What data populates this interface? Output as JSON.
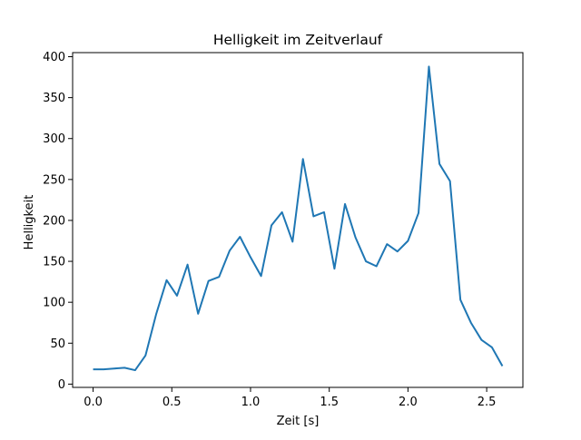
{
  "chart_data": {
    "type": "line",
    "title": "Helligkeit im Zeitverlauf",
    "xlabel": "Zeit [s]",
    "ylabel": "Helligkeit",
    "xlim": [
      -0.13,
      2.73
    ],
    "ylim": [
      -4,
      405
    ],
    "xticks": [
      0.0,
      0.5,
      1.0,
      1.5,
      2.0,
      2.5
    ],
    "xtick_labels": [
      "0.0",
      "0.5",
      "1.0",
      "1.5",
      "2.0",
      "2.5"
    ],
    "yticks": [
      0,
      50,
      100,
      150,
      200,
      250,
      300,
      350,
      400
    ],
    "ytick_labels": [
      "0",
      "50",
      "100",
      "150",
      "200",
      "250",
      "300",
      "350",
      "400"
    ],
    "grid": false,
    "legend": false,
    "line_color": "#1f77b4",
    "series": [
      {
        "x": [
          0.0,
          0.067,
          0.133,
          0.2,
          0.267,
          0.333,
          0.4,
          0.467,
          0.533,
          0.6,
          0.667,
          0.733,
          0.8,
          0.867,
          0.933,
          1.0,
          1.067,
          1.133,
          1.2,
          1.267,
          1.333,
          1.4,
          1.467,
          1.533,
          1.6,
          1.667,
          1.733,
          1.8,
          1.867,
          1.933,
          2.0,
          2.067,
          2.133,
          2.2,
          2.267,
          2.333,
          2.4,
          2.467,
          2.533,
          2.6
        ],
        "y": [
          18,
          18,
          19,
          20,
          17,
          35,
          85,
          127,
          108,
          146,
          86,
          126,
          131,
          163,
          180,
          155,
          132,
          194,
          210,
          174,
          275,
          205,
          210,
          141,
          220,
          179,
          150,
          144,
          171,
          162,
          175,
          209,
          388,
          269,
          248,
          103,
          75,
          54,
          45,
          22
        ]
      }
    ]
  }
}
